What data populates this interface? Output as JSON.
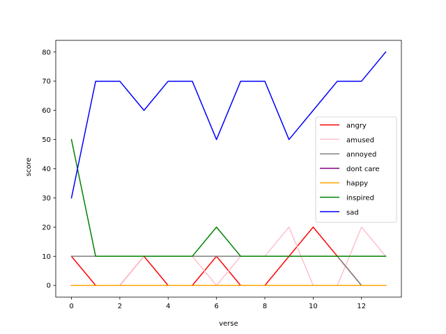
{
  "chart_data": {
    "type": "line",
    "title": "",
    "xlabel": "verse",
    "ylabel": "score",
    "x": [
      0,
      1,
      2,
      3,
      4,
      5,
      6,
      7,
      8,
      9,
      10,
      11,
      12,
      13
    ],
    "xlim": [
      -0.65,
      13.65
    ],
    "ylim": [
      -4,
      84
    ],
    "xticks": [
      0,
      2,
      4,
      6,
      8,
      10,
      12
    ],
    "yticks": [
      0,
      10,
      20,
      30,
      40,
      50,
      60,
      70,
      80
    ],
    "grid": false,
    "legend_position": "center-right",
    "series": [
      {
        "name": "angry",
        "color": "#ff0000",
        "values": [
          10,
          0,
          0,
          10,
          0,
          0,
          10,
          0,
          0,
          10,
          20,
          10,
          0,
          0
        ]
      },
      {
        "name": "amused",
        "color": "#ffc0cb",
        "values": [
          0,
          0,
          0,
          10,
          10,
          10,
          0,
          10,
          10,
          20,
          0,
          0,
          20,
          10
        ]
      },
      {
        "name": "annoyed",
        "color": "#808080",
        "values": [
          10,
          10,
          10,
          10,
          10,
          10,
          10,
          10,
          10,
          10,
          10,
          10,
          0,
          0
        ]
      },
      {
        "name": "dont care",
        "color": "#800080",
        "values": [
          0,
          0,
          0,
          0,
          0,
          0,
          0,
          0,
          0,
          0,
          0,
          0,
          0,
          0
        ]
      },
      {
        "name": "happy",
        "color": "#ffa500",
        "values": [
          0,
          0,
          0,
          0,
          0,
          0,
          0,
          0,
          0,
          0,
          0,
          0,
          0,
          0
        ]
      },
      {
        "name": "inspired",
        "color": "#008000",
        "values": [
          50,
          10,
          10,
          10,
          10,
          10,
          20,
          10,
          10,
          10,
          10,
          10,
          10,
          10
        ]
      },
      {
        "name": "sad",
        "color": "#0000ff",
        "values": [
          30,
          70,
          70,
          60,
          70,
          70,
          50,
          70,
          70,
          50,
          60,
          70,
          70,
          80
        ]
      }
    ]
  }
}
